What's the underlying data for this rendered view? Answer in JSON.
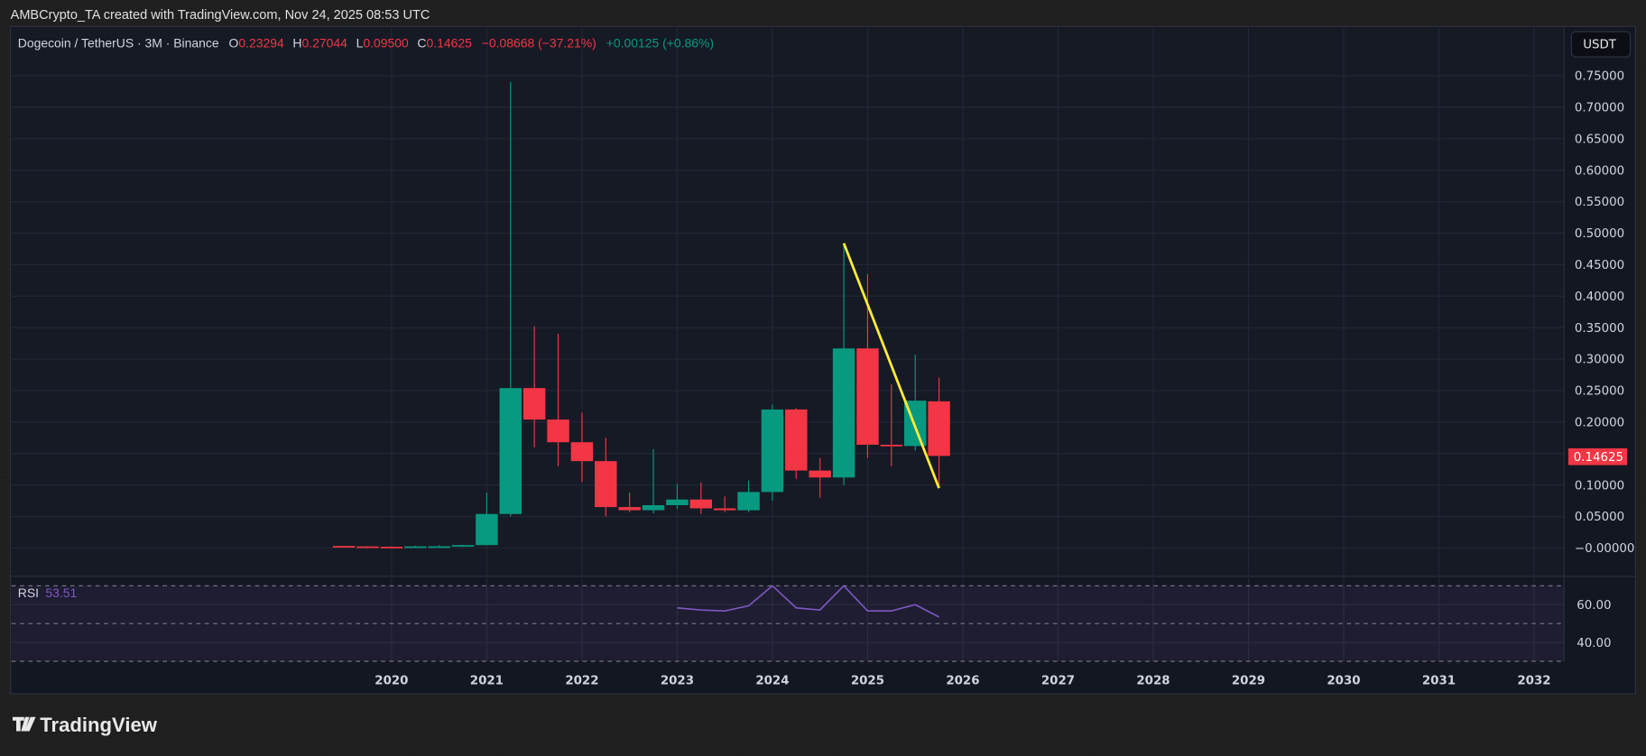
{
  "header": {
    "attribution": "AMBCrypto_TA created with TradingView.com, Nov 24, 2025 08:53 UTC"
  },
  "legend": {
    "symbol": "Dogecoin / TetherUS · 3M · Binance",
    "o_label": "O",
    "o": "0.23294",
    "h_label": "H",
    "h": "0.27044",
    "l_label": "L",
    "l": "0.09500",
    "c_label": "C",
    "c": "0.14625",
    "change": "−0.08668 (−37.21%)",
    "extra_change": "+0.00125 (+0.86%)"
  },
  "currency_button": "USDT",
  "last_price_label": "0.14625",
  "rsi": {
    "label": "RSI",
    "value": "53.51"
  },
  "brand": "TradingView",
  "colors": {
    "up": "#089981",
    "down": "#f23645",
    "trendline": "#ffeb3b",
    "rsi": "#7e57c2",
    "background": "#131722"
  },
  "chart_data": [
    {
      "type": "candlestick",
      "title": "Dogecoin / TetherUS · 3M · Binance",
      "ylim": [
        -0.025,
        0.78
      ],
      "y_ticks": [
        "0.75000",
        "0.70000",
        "0.65000",
        "0.60000",
        "0.55000",
        "0.50000",
        "0.45000",
        "0.40000",
        "0.35000",
        "0.30000",
        "0.25000",
        "0.20000",
        "0.10000",
        "0.05000",
        "−0.00000"
      ],
      "y_tick_values": [
        0.75,
        0.7,
        0.65,
        0.6,
        0.55,
        0.5,
        0.45,
        0.4,
        0.35,
        0.3,
        0.25,
        0.2,
        0.1,
        0.05,
        0.0
      ],
      "x_ticks": [
        "2020",
        "2021",
        "2022",
        "2023",
        "2024",
        "2025",
        "2026",
        "2027",
        "2028",
        "2029",
        "2030",
        "2031",
        "2032"
      ],
      "grid": true,
      "candles": [
        {
          "t": "2019 Q3",
          "o": 0.0032,
          "h": 0.0034,
          "l": 0.0022,
          "c": 0.0025
        },
        {
          "t": "2019 Q4",
          "o": 0.0025,
          "h": 0.003,
          "l": 0.0019,
          "c": 0.002
        },
        {
          "t": "2020 Q1",
          "o": 0.002,
          "h": 0.0027,
          "l": 0.0013,
          "c": 0.0018
        },
        {
          "t": "2020 Q2",
          "o": 0.0018,
          "h": 0.0035,
          "l": 0.0017,
          "c": 0.0026
        },
        {
          "t": "2020 Q3",
          "o": 0.0026,
          "h": 0.0045,
          "l": 0.0024,
          "c": 0.0027
        },
        {
          "t": "2020 Q4",
          "o": 0.0027,
          "h": 0.005,
          "l": 0.0025,
          "c": 0.0046
        },
        {
          "t": "2021 Q1",
          "o": 0.0046,
          "h": 0.088,
          "l": 0.0045,
          "c": 0.054
        },
        {
          "t": "2021 Q2",
          "o": 0.054,
          "h": 0.74,
          "l": 0.05,
          "c": 0.254
        },
        {
          "t": "2021 Q3",
          "o": 0.254,
          "h": 0.352,
          "l": 0.16,
          "c": 0.204
        },
        {
          "t": "2021 Q4",
          "o": 0.204,
          "h": 0.34,
          "l": 0.13,
          "c": 0.168
        },
        {
          "t": "2022 Q1",
          "o": 0.168,
          "h": 0.215,
          "l": 0.105,
          "c": 0.138
        },
        {
          "t": "2022 Q2",
          "o": 0.138,
          "h": 0.175,
          "l": 0.05,
          "c": 0.065
        },
        {
          "t": "2022 Q3",
          "o": 0.065,
          "h": 0.088,
          "l": 0.057,
          "c": 0.06
        },
        {
          "t": "2022 Q4",
          "o": 0.06,
          "h": 0.157,
          "l": 0.055,
          "c": 0.068
        },
        {
          "t": "2023 Q1",
          "o": 0.068,
          "h": 0.102,
          "l": 0.062,
          "c": 0.077
        },
        {
          "t": "2023 Q2",
          "o": 0.077,
          "h": 0.104,
          "l": 0.054,
          "c": 0.063
        },
        {
          "t": "2023 Q3",
          "o": 0.063,
          "h": 0.082,
          "l": 0.057,
          "c": 0.06
        },
        {
          "t": "2023 Q4",
          "o": 0.06,
          "h": 0.107,
          "l": 0.057,
          "c": 0.089
        },
        {
          "t": "2024 Q1",
          "o": 0.089,
          "h": 0.228,
          "l": 0.075,
          "c": 0.22
        },
        {
          "t": "2024 Q2",
          "o": 0.22,
          "h": 0.222,
          "l": 0.11,
          "c": 0.123
        },
        {
          "t": "2024 Q3",
          "o": 0.123,
          "h": 0.143,
          "l": 0.08,
          "c": 0.112
        },
        {
          "t": "2024 Q4",
          "o": 0.112,
          "h": 0.484,
          "l": 0.1,
          "c": 0.317
        },
        {
          "t": "2025 Q1",
          "o": 0.317,
          "h": 0.435,
          "l": 0.143,
          "c": 0.164
        },
        {
          "t": "2025 Q2",
          "o": 0.164,
          "h": 0.26,
          "l": 0.13,
          "c": 0.162
        },
        {
          "t": "2025 Q3",
          "o": 0.162,
          "h": 0.307,
          "l": 0.155,
          "c": 0.234
        },
        {
          "t": "2025 Q4",
          "o": 0.23294,
          "h": 0.27044,
          "l": 0.095,
          "c": 0.14625
        }
      ],
      "trendline": {
        "from": {
          "t": "2024 Q4",
          "price": 0.484
        },
        "to": {
          "t": "2025 Q4",
          "price": 0.095
        }
      }
    },
    {
      "type": "line",
      "title": "RSI",
      "ylim": [
        30,
        70
      ],
      "y_ticks": [
        "60.00",
        "40.00"
      ],
      "y_tick_values": [
        60,
        40
      ],
      "bands": [
        70,
        50,
        30
      ],
      "points": [
        {
          "t": "2023 Q1",
          "v": 58.3
        },
        {
          "t": "2023 Q2",
          "v": 57.2
        },
        {
          "t": "2023 Q3",
          "v": 56.7
        },
        {
          "t": "2023 Q4",
          "v": 59.4
        },
        {
          "t": "2024 Q1",
          "v": 70.0
        },
        {
          "t": "2024 Q2",
          "v": 58.3
        },
        {
          "t": "2024 Q3",
          "v": 57.2
        },
        {
          "t": "2024 Q4",
          "v": 70.0
        },
        {
          "t": "2025 Q1",
          "v": 56.7
        },
        {
          "t": "2025 Q2",
          "v": 56.7
        },
        {
          "t": "2025 Q3",
          "v": 60.0
        },
        {
          "t": "2025 Q4",
          "v": 53.51
        }
      ]
    }
  ]
}
